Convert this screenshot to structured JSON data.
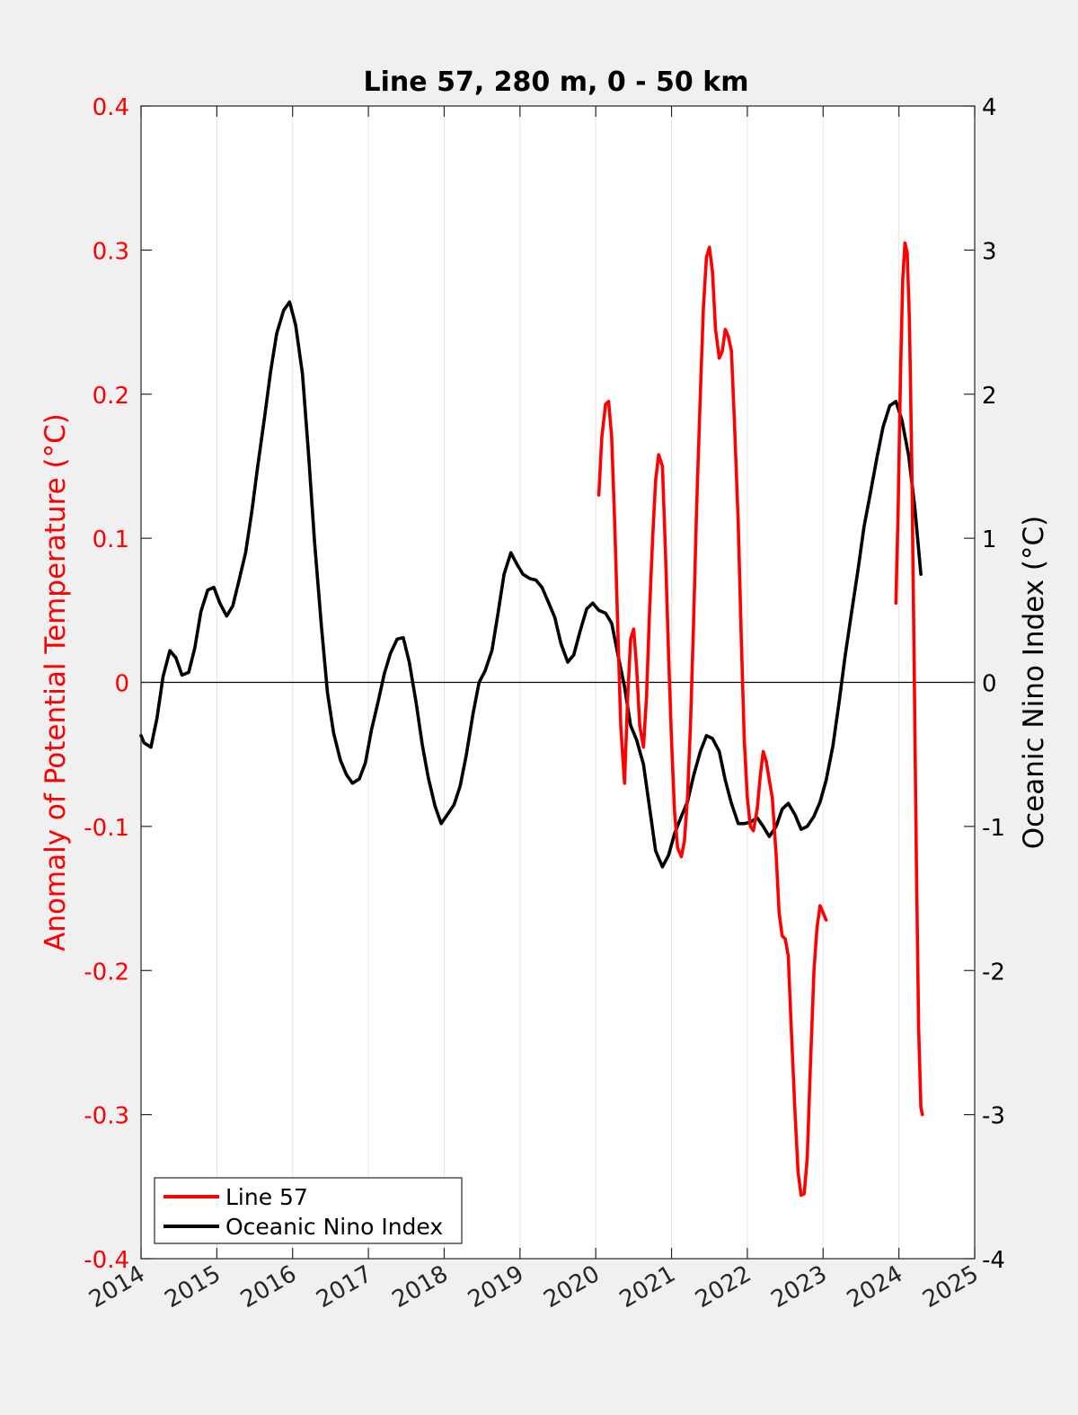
{
  "chart_data": {
    "type": "line",
    "title": "Line 57, 280 m, 0 - 50 km",
    "xlim": [
      2014,
      2025
    ],
    "x_ticks": [
      2014,
      2015,
      2016,
      2017,
      2018,
      2019,
      2020,
      2021,
      2022,
      2023,
      2024,
      2025
    ],
    "x_tick_labels": [
      "2014",
      "2015",
      "2016",
      "2017",
      "2018",
      "2019",
      "2020",
      "2021",
      "2022",
      "2023",
      "2024",
      "2025"
    ],
    "x_grid": true,
    "y_left": {
      "label": "Anomaly of Potential Temperature (°C)",
      "range": [
        -0.4,
        0.4
      ],
      "ticks": [
        -0.4,
        -0.3,
        -0.2,
        -0.1,
        0,
        0.1,
        0.2,
        0.3,
        0.4
      ],
      "tick_labels": [
        "-0.4",
        "-0.3",
        "-0.2",
        "-0.1",
        "0",
        "0.1",
        "0.2",
        "0.3",
        "0.4"
      ],
      "color": "#ff0000"
    },
    "y_right": {
      "label": "Oceanic Nino Index (°C)",
      "range": [
        -4,
        4
      ],
      "ticks": [
        -4,
        -3,
        -2,
        -1,
        0,
        1,
        2,
        3,
        4
      ],
      "tick_labels": [
        "-4",
        "-3",
        "-2",
        "-1",
        "0",
        "1",
        "2",
        "3",
        "4"
      ],
      "color": "#000000"
    },
    "zero_line": true,
    "legend": {
      "location": "bottom-left",
      "entries": [
        {
          "label": "Line 57",
          "color": "#ff0000"
        },
        {
          "label": "Oceanic Nino Index",
          "color": "#000000"
        }
      ]
    },
    "series": [
      {
        "name": "Oceanic Nino Index",
        "axis": "right",
        "color": "#000000",
        "points": [
          [
            2014.0,
            -0.37
          ],
          [
            2014.04,
            -0.42
          ],
          [
            2014.13,
            -0.45
          ],
          [
            2014.21,
            -0.25
          ],
          [
            2014.29,
            0.04
          ],
          [
            2014.38,
            0.22
          ],
          [
            2014.46,
            0.17
          ],
          [
            2014.54,
            0.05
          ],
          [
            2014.63,
            0.07
          ],
          [
            2014.71,
            0.24
          ],
          [
            2014.79,
            0.49
          ],
          [
            2014.88,
            0.64
          ],
          [
            2014.96,
            0.66
          ],
          [
            2015.04,
            0.55
          ],
          [
            2015.13,
            0.46
          ],
          [
            2015.21,
            0.53
          ],
          [
            2015.29,
            0.7
          ],
          [
            2015.38,
            0.9
          ],
          [
            2015.46,
            1.18
          ],
          [
            2015.54,
            1.5
          ],
          [
            2015.63,
            1.84
          ],
          [
            2015.71,
            2.16
          ],
          [
            2015.79,
            2.42
          ],
          [
            2015.88,
            2.58
          ],
          [
            2015.96,
            2.64
          ],
          [
            2016.04,
            2.48
          ],
          [
            2016.13,
            2.14
          ],
          [
            2016.21,
            1.59
          ],
          [
            2016.29,
            0.97
          ],
          [
            2016.38,
            0.39
          ],
          [
            2016.46,
            -0.07
          ],
          [
            2016.54,
            -0.35
          ],
          [
            2016.63,
            -0.54
          ],
          [
            2016.71,
            -0.64
          ],
          [
            2016.79,
            -0.7
          ],
          [
            2016.88,
            -0.67
          ],
          [
            2016.96,
            -0.56
          ],
          [
            2017.04,
            -0.33
          ],
          [
            2017.13,
            -0.13
          ],
          [
            2017.21,
            0.06
          ],
          [
            2017.29,
            0.2
          ],
          [
            2017.38,
            0.3
          ],
          [
            2017.46,
            0.31
          ],
          [
            2017.54,
            0.14
          ],
          [
            2017.63,
            -0.14
          ],
          [
            2017.71,
            -0.43
          ],
          [
            2017.79,
            -0.66
          ],
          [
            2017.88,
            -0.86
          ],
          [
            2017.96,
            -0.98
          ],
          [
            2018.04,
            -0.92
          ],
          [
            2018.13,
            -0.85
          ],
          [
            2018.21,
            -0.72
          ],
          [
            2018.29,
            -0.51
          ],
          [
            2018.38,
            -0.22
          ],
          [
            2018.46,
            0.0
          ],
          [
            2018.54,
            0.08
          ],
          [
            2018.63,
            0.22
          ],
          [
            2018.71,
            0.48
          ],
          [
            2018.79,
            0.75
          ],
          [
            2018.88,
            0.9
          ],
          [
            2018.96,
            0.82
          ],
          [
            2019.04,
            0.75
          ],
          [
            2019.13,
            0.72
          ],
          [
            2019.21,
            0.71
          ],
          [
            2019.29,
            0.66
          ],
          [
            2019.38,
            0.55
          ],
          [
            2019.46,
            0.45
          ],
          [
            2019.54,
            0.27
          ],
          [
            2019.63,
            0.14
          ],
          [
            2019.71,
            0.19
          ],
          [
            2019.79,
            0.35
          ],
          [
            2019.88,
            0.51
          ],
          [
            2019.96,
            0.55
          ],
          [
            2020.04,
            0.5
          ],
          [
            2020.13,
            0.48
          ],
          [
            2020.21,
            0.41
          ],
          [
            2020.29,
            0.2
          ],
          [
            2020.38,
            -0.03
          ],
          [
            2020.46,
            -0.3
          ],
          [
            2020.54,
            -0.4
          ],
          [
            2020.63,
            -0.57
          ],
          [
            2020.71,
            -0.87
          ],
          [
            2020.79,
            -1.17
          ],
          [
            2020.88,
            -1.28
          ],
          [
            2020.96,
            -1.2
          ],
          [
            2021.04,
            -1.05
          ],
          [
            2021.13,
            -0.93
          ],
          [
            2021.21,
            -0.83
          ],
          [
            2021.29,
            -0.65
          ],
          [
            2021.38,
            -0.48
          ],
          [
            2021.46,
            -0.37
          ],
          [
            2021.54,
            -0.39
          ],
          [
            2021.63,
            -0.48
          ],
          [
            2021.71,
            -0.68
          ],
          [
            2021.79,
            -0.84
          ],
          [
            2021.88,
            -0.98
          ],
          [
            2021.96,
            -0.98
          ],
          [
            2022.04,
            -0.97
          ],
          [
            2022.13,
            -0.94
          ],
          [
            2022.21,
            -1.0
          ],
          [
            2022.29,
            -1.07
          ],
          [
            2022.38,
            -1.0
          ],
          [
            2022.46,
            -0.88
          ],
          [
            2022.54,
            -0.84
          ],
          [
            2022.63,
            -0.92
          ],
          [
            2022.71,
            -1.02
          ],
          [
            2022.79,
            -1.0
          ],
          [
            2022.88,
            -0.93
          ],
          [
            2022.96,
            -0.83
          ],
          [
            2023.04,
            -0.68
          ],
          [
            2023.13,
            -0.44
          ],
          [
            2023.21,
            -0.14
          ],
          [
            2023.29,
            0.18
          ],
          [
            2023.38,
            0.5
          ],
          [
            2023.46,
            0.78
          ],
          [
            2023.54,
            1.08
          ],
          [
            2023.63,
            1.33
          ],
          [
            2023.71,
            1.56
          ],
          [
            2023.79,
            1.77
          ],
          [
            2023.88,
            1.92
          ],
          [
            2023.96,
            1.95
          ],
          [
            2024.04,
            1.82
          ],
          [
            2024.13,
            1.57
          ],
          [
            2024.21,
            1.21
          ],
          [
            2024.29,
            0.75
          ]
        ]
      },
      {
        "name": "Line 57",
        "axis": "left",
        "color": "#ff0000",
        "segments": [
          [
            [
              2020.04,
              0.13
            ],
            [
              2020.08,
              0.17
            ],
            [
              2020.13,
              0.193
            ],
            [
              2020.17,
              0.195
            ],
            [
              2020.21,
              0.17
            ],
            [
              2020.25,
              0.11
            ],
            [
              2020.29,
              0.04
            ],
            [
              2020.33,
              -0.03
            ],
            [
              2020.38,
              -0.07
            ],
            [
              2020.42,
              -0.012
            ],
            [
              2020.46,
              0.03
            ],
            [
              2020.5,
              0.037
            ],
            [
              2020.54,
              0.01
            ],
            [
              2020.58,
              -0.03
            ],
            [
              2020.63,
              -0.045
            ],
            [
              2020.67,
              -0.01
            ],
            [
              2020.71,
              0.05
            ],
            [
              2020.75,
              0.1
            ],
            [
              2020.79,
              0.14
            ],
            [
              2020.83,
              0.158
            ],
            [
              2020.88,
              0.15
            ],
            [
              2020.92,
              0.09
            ],
            [
              2020.96,
              0.02
            ],
            [
              2021.0,
              -0.04
            ],
            [
              2021.04,
              -0.09
            ],
            [
              2021.08,
              -0.115
            ],
            [
              2021.13,
              -0.121
            ],
            [
              2021.17,
              -0.11
            ],
            [
              2021.21,
              -0.08
            ],
            [
              2021.25,
              -0.03
            ],
            [
              2021.29,
              0.04
            ],
            [
              2021.33,
              0.12
            ],
            [
              2021.38,
              0.2
            ],
            [
              2021.42,
              0.26
            ],
            [
              2021.46,
              0.295
            ],
            [
              2021.5,
              0.302
            ],
            [
              2021.54,
              0.285
            ],
            [
              2021.58,
              0.245
            ],
            [
              2021.63,
              0.225
            ],
            [
              2021.67,
              0.23
            ],
            [
              2021.71,
              0.245
            ],
            [
              2021.75,
              0.24
            ],
            [
              2021.79,
              0.23
            ],
            [
              2021.83,
              0.18
            ],
            [
              2021.88,
              0.11
            ],
            [
              2021.92,
              0.03
            ],
            [
              2021.96,
              -0.04
            ],
            [
              2022.0,
              -0.08
            ],
            [
              2022.04,
              -0.1
            ],
            [
              2022.08,
              -0.103
            ],
            [
              2022.13,
              -0.088
            ],
            [
              2022.17,
              -0.065
            ],
            [
              2022.21,
              -0.048
            ],
            [
              2022.25,
              -0.055
            ],
            [
              2022.29,
              -0.068
            ],
            [
              2022.33,
              -0.08
            ],
            [
              2022.38,
              -0.12
            ],
            [
              2022.42,
              -0.16
            ],
            [
              2022.46,
              -0.176
            ],
            [
              2022.5,
              -0.178
            ],
            [
              2022.54,
              -0.19
            ],
            [
              2022.58,
              -0.24
            ],
            [
              2022.63,
              -0.3
            ],
            [
              2022.67,
              -0.34
            ],
            [
              2022.71,
              -0.356
            ],
            [
              2022.75,
              -0.355
            ],
            [
              2022.79,
              -0.33
            ],
            [
              2022.83,
              -0.27
            ],
            [
              2022.88,
              -0.2
            ],
            [
              2022.92,
              -0.17
            ],
            [
              2022.96,
              -0.155
            ],
            [
              2023.0,
              -0.16
            ],
            [
              2023.04,
              -0.165
            ]
          ],
          [
            [
              2023.96,
              0.055
            ],
            [
              2023.99,
              0.12
            ],
            [
              2024.02,
              0.21
            ],
            [
              2024.05,
              0.28
            ],
            [
              2024.08,
              0.305
            ],
            [
              2024.11,
              0.298
            ],
            [
              2024.14,
              0.25
            ],
            [
              2024.17,
              0.15
            ],
            [
              2024.2,
              0.02
            ],
            [
              2024.23,
              -0.12
            ],
            [
              2024.26,
              -0.24
            ],
            [
              2024.29,
              -0.295
            ],
            [
              2024.31,
              -0.3
            ]
          ]
        ]
      }
    ]
  }
}
